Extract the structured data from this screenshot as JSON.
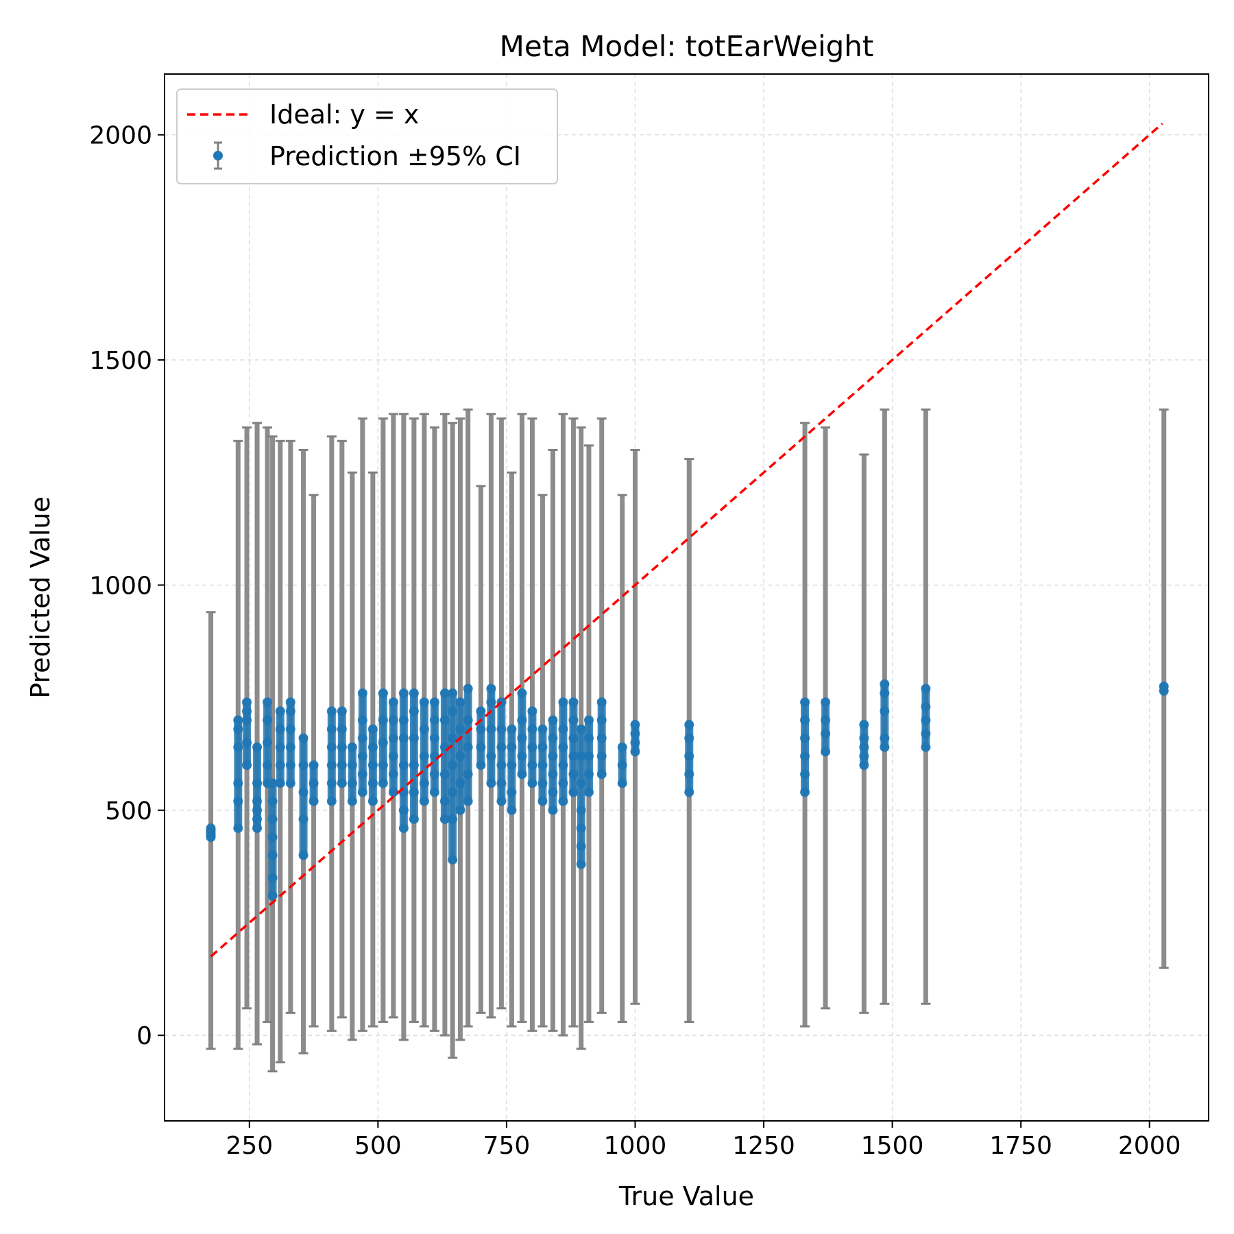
{
  "chart_data": {
    "type": "scatter",
    "title": "Meta Model: totEarWeight",
    "xlabel": "True Value",
    "ylabel": "Predicted Value",
    "xlim": [
      85,
      2115
    ],
    "ylim": [
      -190,
      2135
    ],
    "xticks": [
      250,
      500,
      750,
      1000,
      1250,
      1500,
      1750,
      2000
    ],
    "yticks": [
      0,
      500,
      1000,
      1500,
      2000
    ],
    "grid": true,
    "legend": {
      "placement": "top-left",
      "entries": [
        "Ideal: y = x",
        "Prediction ±95% CI"
      ]
    },
    "colors": {
      "ideal_line": "#ff0000",
      "points": "#1f77b4",
      "error_bars": "#808080",
      "grid": "#dddddd"
    },
    "series": [
      {
        "name": "Ideal: y = x",
        "kind": "line",
        "x": [
          175,
          2025
        ],
        "y": [
          175,
          2025
        ]
      },
      {
        "name": "Prediction ±95% CI",
        "kind": "errorbar-groups",
        "groups": [
          {
            "x": 175,
            "y": [
              440,
              445,
              450,
              455,
              460
            ],
            "ci": [
              -30,
              940
            ]
          },
          {
            "x": 228,
            "y": [
              460,
              520,
              560,
              640,
              680,
              700
            ],
            "ci": [
              -30,
              1320
            ]
          },
          {
            "x": 245,
            "y": [
              600,
              650,
              700,
              720,
              740
            ],
            "ci": [
              60,
              1350
            ]
          },
          {
            "x": 265,
            "y": [
              460,
              480,
              500,
              520,
              560,
              640
            ],
            "ci": [
              -20,
              1360
            ]
          },
          {
            "x": 285,
            "y": [
              560,
              600,
              650,
              700,
              740
            ],
            "ci": [
              30,
              1350
            ]
          },
          {
            "x": 295,
            "y": [
              310,
              350,
              400,
              440,
              480,
              520,
              560
            ],
            "ci": [
              -80,
              1330
            ]
          },
          {
            "x": 310,
            "y": [
              560,
              600,
              640,
              680,
              720
            ],
            "ci": [
              -60,
              1320
            ]
          },
          {
            "x": 330,
            "y": [
              560,
              600,
              640,
              680,
              720,
              740
            ],
            "ci": [
              50,
              1320
            ]
          },
          {
            "x": 355,
            "y": [
              400,
              480,
              540,
              600,
              660
            ],
            "ci": [
              -40,
              1300
            ]
          },
          {
            "x": 375,
            "y": [
              520,
              560,
              600
            ],
            "ci": [
              20,
              1200
            ]
          },
          {
            "x": 410,
            "y": [
              520,
              560,
              600,
              640,
              680,
              720
            ],
            "ci": [
              10,
              1330
            ]
          },
          {
            "x": 430,
            "y": [
              560,
              600,
              640,
              680,
              720
            ],
            "ci": [
              40,
              1320
            ]
          },
          {
            "x": 450,
            "y": [
              520,
              560,
              600,
              640
            ],
            "ci": [
              -10,
              1250
            ]
          },
          {
            "x": 470,
            "y": [
              540,
              580,
              620,
              660,
              700,
              760
            ],
            "ci": [
              10,
              1370
            ]
          },
          {
            "x": 490,
            "y": [
              520,
              560,
              600,
              640,
              680
            ],
            "ci": [
              20,
              1250
            ]
          },
          {
            "x": 510,
            "y": [
              560,
              600,
              650,
              700,
              760
            ],
            "ci": [
              30,
              1370
            ]
          },
          {
            "x": 530,
            "y": [
              540,
              580,
              620,
              660,
              700,
              740
            ],
            "ci": [
              40,
              1380
            ]
          },
          {
            "x": 550,
            "y": [
              460,
              500,
              540,
              600,
              660,
              700,
              760
            ],
            "ci": [
              -10,
              1380
            ]
          },
          {
            "x": 570,
            "y": [
              480,
              540,
              600,
              660,
              720,
              760
            ],
            "ci": [
              30,
              1370
            ]
          },
          {
            "x": 590,
            "y": [
              520,
              560,
              620,
              680,
              740
            ],
            "ci": [
              20,
              1380
            ]
          },
          {
            "x": 610,
            "y": [
              540,
              580,
              620,
              660,
              700,
              740
            ],
            "ci": [
              10,
              1350
            ]
          },
          {
            "x": 630,
            "y": [
              480,
              520,
              580,
              640,
              700,
              760
            ],
            "ci": [
              0,
              1380
            ]
          },
          {
            "x": 645,
            "y": [
              390,
              480,
              540,
              600,
              660,
              720,
              760
            ],
            "ci": [
              -50,
              1360
            ]
          },
          {
            "x": 660,
            "y": [
              500,
              560,
              620,
              680,
              740
            ],
            "ci": [
              -10,
              1370
            ]
          },
          {
            "x": 675,
            "y": [
              520,
              580,
              640,
              700,
              770
            ],
            "ci": [
              20,
              1390
            ]
          },
          {
            "x": 700,
            "y": [
              600,
              640,
              680,
              720
            ],
            "ci": [
              50,
              1220
            ]
          },
          {
            "x": 720,
            "y": [
              560,
              620,
              680,
              740,
              770
            ],
            "ci": [
              40,
              1380
            ]
          },
          {
            "x": 740,
            "y": [
              520,
              560,
              600,
              640,
              680,
              740
            ],
            "ci": [
              60,
              1370
            ]
          },
          {
            "x": 760,
            "y": [
              500,
              540,
              600,
              640,
              680
            ],
            "ci": [
              20,
              1250
            ]
          },
          {
            "x": 780,
            "y": [
              580,
              620,
              660,
              700,
              760
            ],
            "ci": [
              30,
              1380
            ]
          },
          {
            "x": 800,
            "y": [
              560,
              600,
              640,
              680,
              720
            ],
            "ci": [
              10,
              1370
            ]
          },
          {
            "x": 820,
            "y": [
              520,
              560,
              600,
              640,
              680
            ],
            "ci": [
              20,
              1200
            ]
          },
          {
            "x": 840,
            "y": [
              500,
              540,
              580,
              620,
              660,
              700
            ],
            "ci": [
              10,
              1300
            ]
          },
          {
            "x": 860,
            "y": [
              520,
              560,
              600,
              640,
              680,
              740
            ],
            "ci": [
              0,
              1380
            ]
          },
          {
            "x": 880,
            "y": [
              540,
              580,
              620,
              660,
              700,
              740
            ],
            "ci": [
              20,
              1370
            ]
          },
          {
            "x": 895,
            "y": [
              380,
              420,
              460,
              500,
              560,
              620,
              680
            ],
            "ci": [
              -30,
              1350
            ]
          },
          {
            "x": 910,
            "y": [
              540,
              580,
              620,
              660,
              700
            ],
            "ci": [
              30,
              1310
            ]
          },
          {
            "x": 935,
            "y": [
              580,
              620,
              660,
              700,
              740
            ],
            "ci": [
              50,
              1370
            ]
          },
          {
            "x": 975,
            "y": [
              560,
              600,
              640
            ],
            "ci": [
              30,
              1200
            ]
          },
          {
            "x": 1000,
            "y": [
              630,
              650,
              670,
              690
            ],
            "ci": [
              70,
              1300
            ]
          },
          {
            "x": 1105,
            "y": [
              540,
              580,
              620,
              660,
              690
            ],
            "ci": [
              30,
              1280
            ]
          },
          {
            "x": 1330,
            "y": [
              540,
              580,
              620,
              660,
              700,
              740
            ],
            "ci": [
              20,
              1360
            ]
          },
          {
            "x": 1370,
            "y": [
              630,
              670,
              700,
              740
            ],
            "ci": [
              60,
              1350
            ]
          },
          {
            "x": 1445,
            "y": [
              600,
              620,
              640,
              660,
              690
            ],
            "ci": [
              50,
              1290
            ]
          },
          {
            "x": 1485,
            "y": [
              640,
              660,
              720,
              760,
              780
            ],
            "ci": [
              70,
              1390
            ]
          },
          {
            "x": 1565,
            "y": [
              640,
              670,
              700,
              730,
              770
            ],
            "ci": [
              70,
              1390
            ]
          },
          {
            "x": 2028,
            "y": [
              765,
              775
            ],
            "ci": [
              150,
              1390
            ]
          }
        ]
      }
    ]
  }
}
